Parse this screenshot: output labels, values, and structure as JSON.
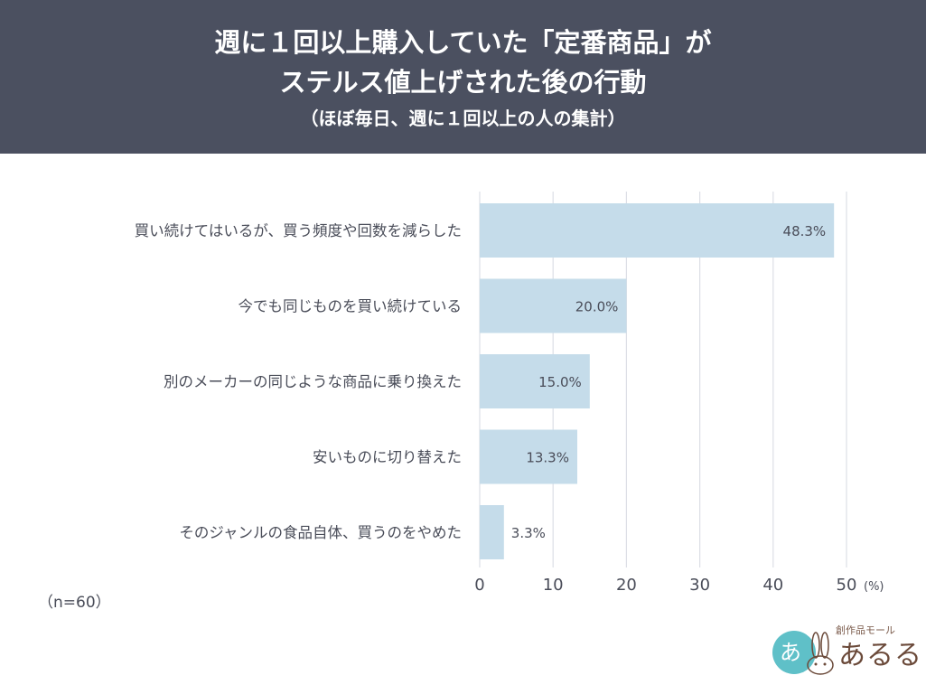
{
  "header": {
    "title_line1": "週に１回以上購入していた「定番商品」が",
    "title_line2": "ステルス値上げされた後の行動",
    "subtitle": "（ほぼ毎日、週に１回以上の人の集計）"
  },
  "chart_data": {
    "type": "bar",
    "orientation": "horizontal",
    "categories": [
      "買い続けてはいるが、買う頻度や回数を減らした",
      "今でも同じものを買い続けている",
      "別のメーカーの同じような商品に乗り換えた",
      "安いものに切り替えた",
      "そのジャンルの食品自体、買うのをやめた"
    ],
    "values": [
      48.3,
      20.0,
      15.0,
      13.3,
      3.3
    ],
    "value_labels": [
      "48.3%",
      "20.0%",
      "15.0%",
      "13.3%",
      "3.3%"
    ],
    "xlim": [
      0,
      50
    ],
    "xticks": [
      0,
      10,
      20,
      30,
      40,
      50
    ],
    "x_unit": "(%)",
    "grid": true,
    "bar_color": "#c5dcea",
    "grid_color": "#dcdfe6"
  },
  "footnote": "（n=60）",
  "logo": {
    "tagline": "創作品モール",
    "name": "あるる",
    "accent_color": "#5fc0c8"
  },
  "colors": {
    "header_bg": "#4b5060",
    "text": "#4a4d59"
  }
}
